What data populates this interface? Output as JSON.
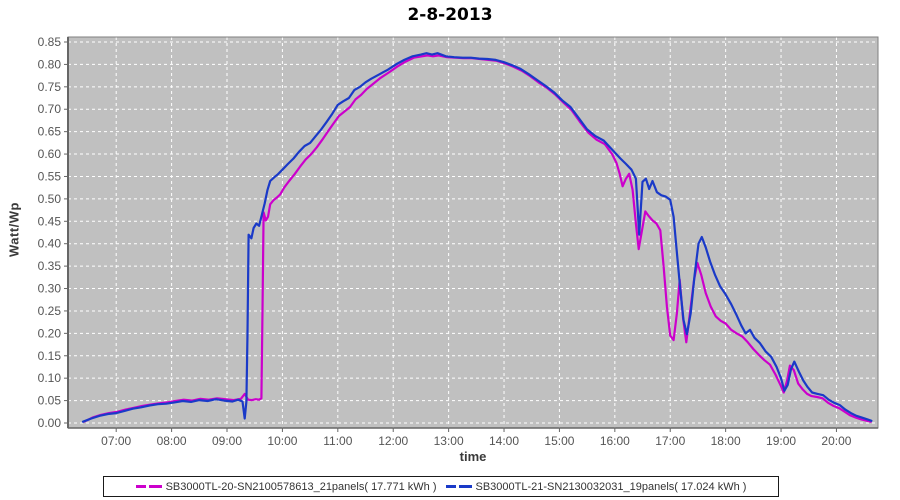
{
  "title": "2-8-2013",
  "colors": {
    "series_magenta": "#cc00cc",
    "series_blue": "#1a3ac8",
    "plot_background": "#c0c0c0",
    "gridline": "#ffffff",
    "plot_border": "#7f7f7f",
    "axis_line": "#666666",
    "tick_label": "#555555",
    "axis_label": "#3a3a3a",
    "legend_border": "#1a1a1a"
  },
  "y_axis": {
    "label": "Watt/Wp",
    "tick_labels": [
      "0.00",
      "0.05",
      "0.10",
      "0.15",
      "0.20",
      "0.25",
      "0.30",
      "0.35",
      "0.40",
      "0.45",
      "0.50",
      "0.55",
      "0.60",
      "0.65",
      "0.70",
      "0.75",
      "0.80",
      "0.85"
    ]
  },
  "x_axis": {
    "label": "time",
    "tick_labels": [
      "07:00",
      "08:00",
      "09:00",
      "10:00",
      "11:00",
      "12:00",
      "13:00",
      "14:00",
      "15:00",
      "16:00",
      "17:00",
      "18:00",
      "19:00",
      "20:00"
    ]
  },
  "legend": {
    "items": [
      {
        "label": "SB3000TL-20-SN2100578613_21panels( 17.771 kWh )",
        "color": "#cc00cc"
      },
      {
        "label": "SB3000TL-21-SN2130032031_19panels( 17.024 kWh )",
        "color": "#1a3ac8"
      }
    ]
  },
  "chart_data": {
    "type": "line",
    "title": "2-8-2013",
    "xlabel": "time",
    "ylabel": "Watt/Wp",
    "x_unit": "hour of day (decimal hours)",
    "xlim": [
      6.13,
      20.75
    ],
    "ylim": [
      0,
      0.85
    ],
    "y_tick_step": 0.05,
    "grid": true,
    "grid_style": "white dashed on gray plot background",
    "legend_position": "bottom",
    "series": [
      {
        "name": "SB3000TL-20-SN2100578613_21panels( 17.771 kWh )",
        "color": "#cc00cc",
        "points": [
          [
            6.42,
            0.003
          ],
          [
            6.57,
            0.012
          ],
          [
            6.72,
            0.018
          ],
          [
            6.87,
            0.022
          ],
          [
            7.02,
            0.025
          ],
          [
            7.17,
            0.03
          ],
          [
            7.32,
            0.034
          ],
          [
            7.47,
            0.038
          ],
          [
            7.62,
            0.041
          ],
          [
            7.77,
            0.044
          ],
          [
            7.92,
            0.046
          ],
          [
            8.07,
            0.049
          ],
          [
            8.22,
            0.052
          ],
          [
            8.37,
            0.05
          ],
          [
            8.52,
            0.054
          ],
          [
            8.67,
            0.052
          ],
          [
            8.82,
            0.055
          ],
          [
            8.97,
            0.053
          ],
          [
            9.12,
            0.051
          ],
          [
            9.25,
            0.054
          ],
          [
            9.32,
            0.065
          ],
          [
            9.38,
            0.052
          ],
          [
            9.45,
            0.051
          ],
          [
            9.52,
            0.053
          ],
          [
            9.58,
            0.052
          ],
          [
            9.62,
            0.055
          ],
          [
            9.64,
            0.25
          ],
          [
            9.66,
            0.47
          ],
          [
            9.7,
            0.452
          ],
          [
            9.74,
            0.46
          ],
          [
            9.78,
            0.488
          ],
          [
            9.84,
            0.497
          ],
          [
            9.9,
            0.503
          ],
          [
            9.96,
            0.51
          ],
          [
            10.03,
            0.525
          ],
          [
            10.12,
            0.54
          ],
          [
            10.22,
            0.555
          ],
          [
            10.32,
            0.572
          ],
          [
            10.42,
            0.588
          ],
          [
            10.52,
            0.6
          ],
          [
            10.62,
            0.615
          ],
          [
            10.72,
            0.632
          ],
          [
            10.82,
            0.65
          ],
          [
            10.92,
            0.668
          ],
          [
            11.02,
            0.685
          ],
          [
            11.12,
            0.695
          ],
          [
            11.22,
            0.705
          ],
          [
            11.32,
            0.722
          ],
          [
            11.42,
            0.732
          ],
          [
            11.52,
            0.745
          ],
          [
            11.62,
            0.755
          ],
          [
            11.77,
            0.77
          ],
          [
            11.92,
            0.782
          ],
          [
            12.07,
            0.795
          ],
          [
            12.22,
            0.806
          ],
          [
            12.37,
            0.815
          ],
          [
            12.52,
            0.818
          ],
          [
            12.62,
            0.82
          ],
          [
            12.72,
            0.818
          ],
          [
            12.82,
            0.82
          ],
          [
            12.97,
            0.816
          ],
          [
            13.12,
            0.815
          ],
          [
            13.27,
            0.814
          ],
          [
            13.42,
            0.814
          ],
          [
            13.57,
            0.812
          ],
          [
            13.72,
            0.81
          ],
          [
            13.87,
            0.808
          ],
          [
            14.02,
            0.802
          ],
          [
            14.17,
            0.795
          ],
          [
            14.32,
            0.786
          ],
          [
            14.47,
            0.774
          ],
          [
            14.62,
            0.76
          ],
          [
            14.77,
            0.748
          ],
          [
            14.92,
            0.733
          ],
          [
            15.07,
            0.715
          ],
          [
            15.22,
            0.698
          ],
          [
            15.37,
            0.672
          ],
          [
            15.52,
            0.648
          ],
          [
            15.67,
            0.632
          ],
          [
            15.82,
            0.622
          ],
          [
            15.95,
            0.6
          ],
          [
            16.03,
            0.58
          ],
          [
            16.09,
            0.555
          ],
          [
            16.14,
            0.528
          ],
          [
            16.2,
            0.545
          ],
          [
            16.26,
            0.556
          ],
          [
            16.32,
            0.52
          ],
          [
            16.38,
            0.445
          ],
          [
            16.43,
            0.388
          ],
          [
            16.49,
            0.43
          ],
          [
            16.55,
            0.472
          ],
          [
            16.61,
            0.462
          ],
          [
            16.68,
            0.452
          ],
          [
            16.75,
            0.445
          ],
          [
            16.82,
            0.43
          ],
          [
            16.88,
            0.35
          ],
          [
            16.94,
            0.26
          ],
          [
            17.0,
            0.195
          ],
          [
            17.06,
            0.185
          ],
          [
            17.12,
            0.245
          ],
          [
            17.17,
            0.32
          ],
          [
            17.23,
            0.235
          ],
          [
            17.29,
            0.18
          ],
          [
            17.36,
            0.25
          ],
          [
            17.43,
            0.32
          ],
          [
            17.49,
            0.357
          ],
          [
            17.56,
            0.33
          ],
          [
            17.64,
            0.29
          ],
          [
            17.73,
            0.26
          ],
          [
            17.82,
            0.238
          ],
          [
            17.91,
            0.228
          ],
          [
            18.0,
            0.222
          ],
          [
            18.1,
            0.208
          ],
          [
            18.2,
            0.2
          ],
          [
            18.3,
            0.193
          ],
          [
            18.4,
            0.18
          ],
          [
            18.5,
            0.165
          ],
          [
            18.6,
            0.152
          ],
          [
            18.7,
            0.14
          ],
          [
            18.8,
            0.13
          ],
          [
            18.9,
            0.108
          ],
          [
            19.0,
            0.082
          ],
          [
            19.05,
            0.068
          ],
          [
            19.11,
            0.095
          ],
          [
            19.16,
            0.128
          ],
          [
            19.23,
            0.118
          ],
          [
            19.31,
            0.088
          ],
          [
            19.39,
            0.075
          ],
          [
            19.47,
            0.065
          ],
          [
            19.55,
            0.06
          ],
          [
            19.65,
            0.058
          ],
          [
            19.75,
            0.055
          ],
          [
            19.85,
            0.045
          ],
          [
            19.95,
            0.038
          ],
          [
            20.05,
            0.033
          ],
          [
            20.15,
            0.025
          ],
          [
            20.25,
            0.017
          ],
          [
            20.35,
            0.012
          ],
          [
            20.45,
            0.008
          ],
          [
            20.55,
            0.005
          ],
          [
            20.62,
            0.003
          ]
        ]
      },
      {
        "name": "SB3000TL-21-SN2130032031_19panels( 17.024 kWh )",
        "color": "#1a3ac8",
        "points": [
          [
            6.4,
            0.003
          ],
          [
            6.55,
            0.01
          ],
          [
            6.7,
            0.016
          ],
          [
            6.85,
            0.02
          ],
          [
            7.0,
            0.022
          ],
          [
            7.15,
            0.027
          ],
          [
            7.3,
            0.032
          ],
          [
            7.45,
            0.035
          ],
          [
            7.6,
            0.039
          ],
          [
            7.75,
            0.042
          ],
          [
            7.9,
            0.043
          ],
          [
            8.05,
            0.046
          ],
          [
            8.2,
            0.049
          ],
          [
            8.35,
            0.047
          ],
          [
            8.5,
            0.051
          ],
          [
            8.65,
            0.049
          ],
          [
            8.8,
            0.053
          ],
          [
            8.95,
            0.05
          ],
          [
            9.1,
            0.048
          ],
          [
            9.2,
            0.052
          ],
          [
            9.28,
            0.048
          ],
          [
            9.32,
            0.01
          ],
          [
            9.35,
            0.048
          ],
          [
            9.37,
            0.2
          ],
          [
            9.39,
            0.42
          ],
          [
            9.44,
            0.412
          ],
          [
            9.48,
            0.435
          ],
          [
            9.53,
            0.445
          ],
          [
            9.58,
            0.44
          ],
          [
            9.63,
            0.465
          ],
          [
            9.68,
            0.49
          ],
          [
            9.73,
            0.52
          ],
          [
            9.78,
            0.54
          ],
          [
            9.85,
            0.548
          ],
          [
            9.92,
            0.555
          ],
          [
            10.0,
            0.565
          ],
          [
            10.1,
            0.578
          ],
          [
            10.2,
            0.59
          ],
          [
            10.3,
            0.605
          ],
          [
            10.4,
            0.618
          ],
          [
            10.5,
            0.625
          ],
          [
            10.6,
            0.64
          ],
          [
            10.7,
            0.655
          ],
          [
            10.8,
            0.672
          ],
          [
            10.9,
            0.69
          ],
          [
            11.0,
            0.71
          ],
          [
            11.1,
            0.718
          ],
          [
            11.2,
            0.725
          ],
          [
            11.3,
            0.743
          ],
          [
            11.4,
            0.75
          ],
          [
            11.5,
            0.76
          ],
          [
            11.6,
            0.768
          ],
          [
            11.75,
            0.778
          ],
          [
            11.9,
            0.788
          ],
          [
            12.05,
            0.8
          ],
          [
            12.2,
            0.81
          ],
          [
            12.35,
            0.818
          ],
          [
            12.5,
            0.822
          ],
          [
            12.6,
            0.825
          ],
          [
            12.7,
            0.822
          ],
          [
            12.8,
            0.825
          ],
          [
            12.95,
            0.818
          ],
          [
            13.1,
            0.816
          ],
          [
            13.25,
            0.815
          ],
          [
            13.4,
            0.815
          ],
          [
            13.55,
            0.813
          ],
          [
            13.7,
            0.812
          ],
          [
            13.85,
            0.81
          ],
          [
            14.0,
            0.805
          ],
          [
            14.15,
            0.798
          ],
          [
            14.3,
            0.79
          ],
          [
            14.45,
            0.778
          ],
          [
            14.6,
            0.765
          ],
          [
            14.75,
            0.752
          ],
          [
            14.9,
            0.738
          ],
          [
            15.05,
            0.72
          ],
          [
            15.2,
            0.705
          ],
          [
            15.35,
            0.68
          ],
          [
            15.5,
            0.655
          ],
          [
            15.65,
            0.64
          ],
          [
            15.8,
            0.63
          ],
          [
            15.95,
            0.61
          ],
          [
            16.1,
            0.59
          ],
          [
            16.2,
            0.578
          ],
          [
            16.3,
            0.565
          ],
          [
            16.38,
            0.545
          ],
          [
            16.44,
            0.42
          ],
          [
            16.5,
            0.538
          ],
          [
            16.56,
            0.545
          ],
          [
            16.62,
            0.522
          ],
          [
            16.68,
            0.54
          ],
          [
            16.76,
            0.515
          ],
          [
            16.84,
            0.508
          ],
          [
            16.92,
            0.505
          ],
          [
            17.0,
            0.498
          ],
          [
            17.06,
            0.46
          ],
          [
            17.12,
            0.38
          ],
          [
            17.18,
            0.3
          ],
          [
            17.24,
            0.23
          ],
          [
            17.3,
            0.198
          ],
          [
            17.37,
            0.245
          ],
          [
            17.44,
            0.33
          ],
          [
            17.51,
            0.4
          ],
          [
            17.57,
            0.415
          ],
          [
            17.64,
            0.392
          ],
          [
            17.72,
            0.36
          ],
          [
            17.81,
            0.33
          ],
          [
            17.9,
            0.305
          ],
          [
            18.0,
            0.287
          ],
          [
            18.1,
            0.265
          ],
          [
            18.2,
            0.24
          ],
          [
            18.28,
            0.218
          ],
          [
            18.36,
            0.2
          ],
          [
            18.44,
            0.208
          ],
          [
            18.52,
            0.19
          ],
          [
            18.62,
            0.178
          ],
          [
            18.72,
            0.16
          ],
          [
            18.82,
            0.148
          ],
          [
            18.92,
            0.125
          ],
          [
            19.0,
            0.1
          ],
          [
            19.06,
            0.072
          ],
          [
            19.12,
            0.085
          ],
          [
            19.18,
            0.12
          ],
          [
            19.24,
            0.137
          ],
          [
            19.32,
            0.115
          ],
          [
            19.4,
            0.095
          ],
          [
            19.48,
            0.08
          ],
          [
            19.56,
            0.068
          ],
          [
            19.66,
            0.065
          ],
          [
            19.76,
            0.062
          ],
          [
            19.86,
            0.052
          ],
          [
            19.96,
            0.045
          ],
          [
            20.06,
            0.04
          ],
          [
            20.16,
            0.03
          ],
          [
            20.26,
            0.022
          ],
          [
            20.36,
            0.016
          ],
          [
            20.46,
            0.012
          ],
          [
            20.56,
            0.008
          ],
          [
            20.63,
            0.005
          ]
        ]
      }
    ]
  }
}
